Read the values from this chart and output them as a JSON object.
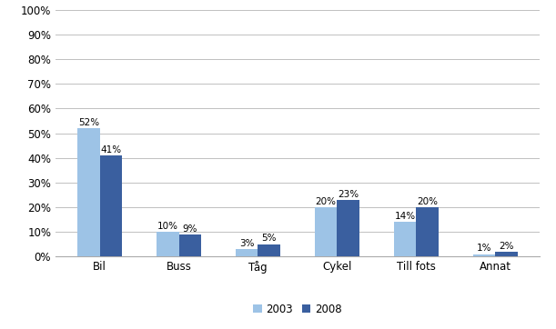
{
  "categories": [
    "Bil",
    "Buss",
    "Tåg",
    "Cykel",
    "Till fots",
    "Annat"
  ],
  "values_2003": [
    52,
    10,
    3,
    20,
    14,
    1
  ],
  "values_2008": [
    41,
    9,
    5,
    23,
    20,
    2
  ],
  "labels_2003": [
    "52%",
    "10%",
    "3%",
    "20%",
    "14%",
    "1%"
  ],
  "labels_2008": [
    "41%",
    "9%",
    "5%",
    "23%",
    "20%",
    "2%"
  ],
  "color_2003": "#9DC3E6",
  "color_2008": "#3A5F9F",
  "ylim": [
    0,
    100
  ],
  "yticks": [
    0,
    10,
    20,
    30,
    40,
    50,
    60,
    70,
    80,
    90,
    100
  ],
  "ytick_labels": [
    "0%",
    "10%",
    "20%",
    "30%",
    "40%",
    "50%",
    "60%",
    "70%",
    "80%",
    "90%",
    "100%"
  ],
  "legend_labels": [
    "2003",
    "2008"
  ],
  "bar_width": 0.28,
  "label_fontsize": 7.5,
  "tick_fontsize": 8.5,
  "legend_fontsize": 8.5,
  "background_color": "#FFFFFF",
  "grid_color": "#C0C0C0"
}
